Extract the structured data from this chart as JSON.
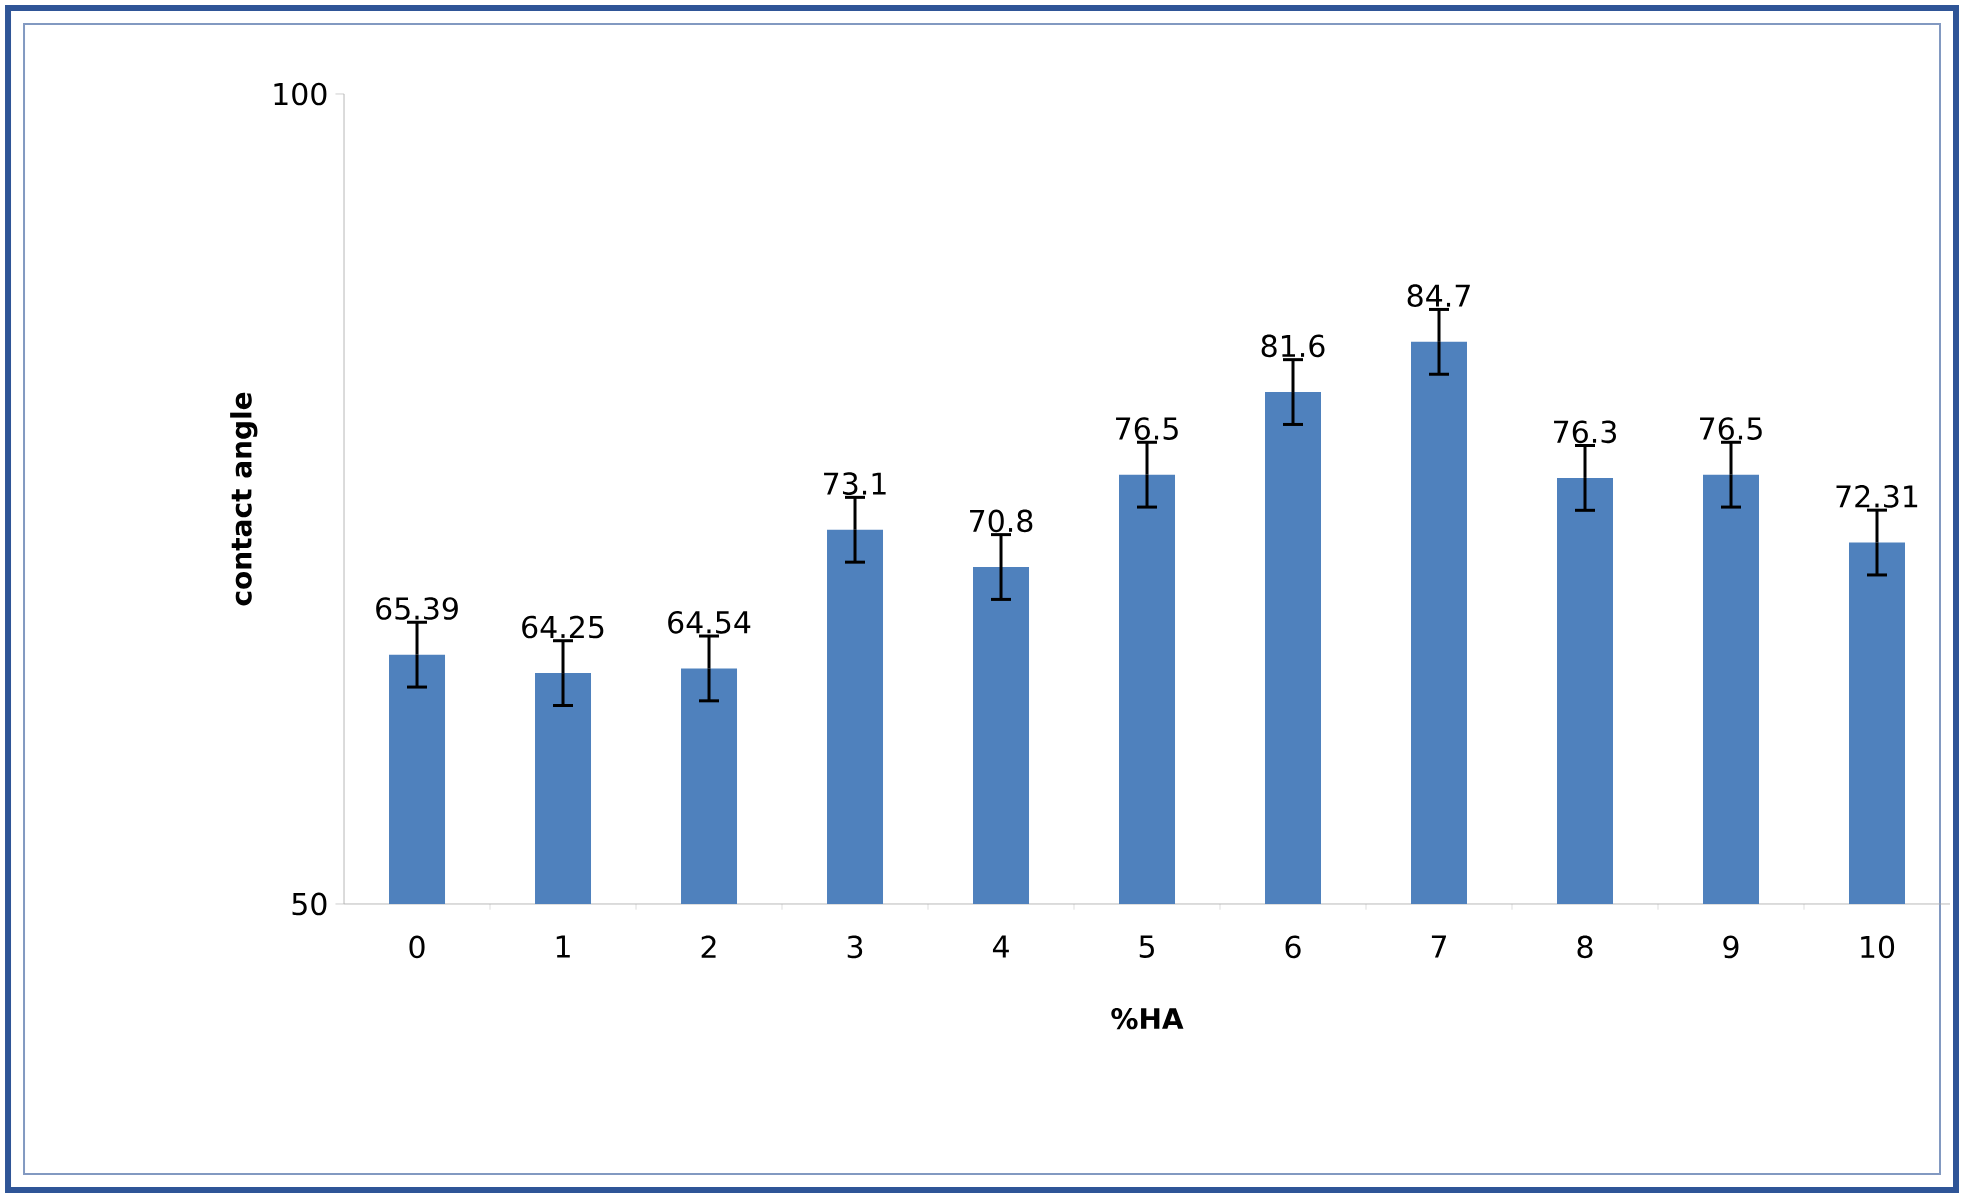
{
  "chart_data": {
    "type": "bar",
    "xlabel": "%HA",
    "ylabel": "contact angle",
    "categories": [
      "0",
      "1",
      "2",
      "3",
      "4",
      "5",
      "6",
      "7",
      "8",
      "9",
      "10"
    ],
    "values": [
      65.39,
      64.25,
      64.54,
      73.1,
      70.8,
      76.5,
      81.6,
      84.7,
      76.3,
      76.5,
      72.31
    ],
    "errors": [
      2,
      2,
      2,
      2,
      2,
      2,
      2,
      2,
      2,
      2,
      2
    ],
    "color": "#4f81bd",
    "ylim": [
      50,
      100
    ],
    "yticks": [
      50,
      100
    ],
    "grid": false,
    "data_labels": true
  }
}
